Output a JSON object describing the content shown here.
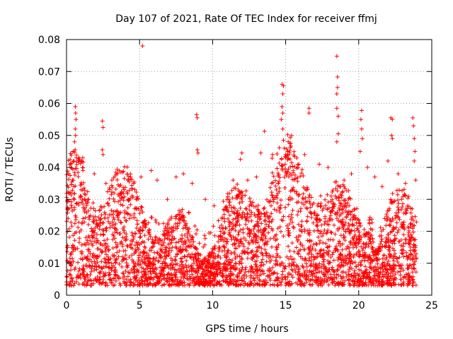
{
  "chart_data": {
    "type": "scatter",
    "title": "Day 107 of 2021, Rate Of TEC Index for receiver ffmj",
    "xlabel": "GPS time / hours",
    "ylabel": "ROTI / TECUs",
    "xlim": [
      0,
      25
    ],
    "ylim": [
      0,
      0.08
    ],
    "xticks": [
      "0",
      "5",
      "10",
      "15",
      "20",
      "25"
    ],
    "yticks": [
      "0",
      "0.01",
      "0.02",
      "0.03",
      "0.04",
      "0.05",
      "0.06",
      "0.07",
      "0.08"
    ],
    "grid": true,
    "marker": "+",
    "color": "#ff0000",
    "series": [
      {
        "name": "ROTI",
        "points": [
          [
            0.05,
            0.015
          ],
          [
            0.15,
            0.038
          ],
          [
            0.3,
            0.04
          ],
          [
            0.45,
            0.045
          ],
          [
            0.5,
            0.042
          ],
          [
            0.6,
            0.059
          ],
          [
            0.62,
            0.057
          ],
          [
            0.65,
            0.055
          ],
          [
            0.6,
            0.052
          ],
          [
            0.62,
            0.05
          ],
          [
            0.55,
            0.048
          ],
          [
            1.0,
            0.033
          ],
          [
            1.5,
            0.03
          ],
          [
            1.9,
            0.038
          ],
          [
            2.45,
            0.0545
          ],
          [
            2.5,
            0.0525
          ],
          [
            2.45,
            0.0455
          ],
          [
            2.5,
            0.044
          ],
          [
            2.7,
            0.035
          ],
          [
            3.1,
            0.036
          ],
          [
            3.6,
            0.031
          ],
          [
            4.2,
            0.036
          ],
          [
            4.6,
            0.035
          ],
          [
            5.2,
            0.078
          ],
          [
            5.1,
            0.037
          ],
          [
            5.8,
            0.039
          ],
          [
            6.2,
            0.036
          ],
          [
            6.9,
            0.03
          ],
          [
            7.5,
            0.037
          ],
          [
            8.0,
            0.038
          ],
          [
            8.6,
            0.035
          ],
          [
            8.9,
            0.0565
          ],
          [
            8.95,
            0.0555
          ],
          [
            8.95,
            0.0455
          ],
          [
            9.0,
            0.0445
          ],
          [
            9.5,
            0.03
          ],
          [
            10.1,
            0.028
          ],
          [
            10.8,
            0.024
          ],
          [
            11.4,
            0.036
          ],
          [
            11.9,
            0.0425
          ],
          [
            12.0,
            0.0445
          ],
          [
            12.4,
            0.036
          ],
          [
            13.0,
            0.037
          ],
          [
            13.3,
            0.0445
          ],
          [
            13.55,
            0.0513
          ],
          [
            14.1,
            0.044
          ],
          [
            14.75,
            0.066
          ],
          [
            14.8,
            0.063
          ],
          [
            14.85,
            0.0655
          ],
          [
            14.75,
            0.059
          ],
          [
            14.8,
            0.057
          ],
          [
            14.7,
            0.055
          ],
          [
            14.8,
            0.052
          ],
          [
            14.85,
            0.0485
          ],
          [
            14.9,
            0.046
          ],
          [
            15.0,
            0.044
          ],
          [
            15.3,
            0.038
          ],
          [
            15.9,
            0.041
          ],
          [
            16.3,
            0.044
          ],
          [
            16.6,
            0.0585
          ],
          [
            16.6,
            0.057
          ],
          [
            17.3,
            0.041
          ],
          [
            17.9,
            0.04
          ],
          [
            18.5,
            0.0748
          ],
          [
            18.55,
            0.0683
          ],
          [
            18.55,
            0.065
          ],
          [
            18.5,
            0.063
          ],
          [
            18.5,
            0.0585
          ],
          [
            18.6,
            0.056
          ],
          [
            18.6,
            0.0505
          ],
          [
            18.5,
            0.048
          ],
          [
            19.0,
            0.036
          ],
          [
            19.5,
            0.038
          ],
          [
            20.2,
            0.0578
          ],
          [
            20.15,
            0.055
          ],
          [
            20.2,
            0.052
          ],
          [
            20.25,
            0.049
          ],
          [
            20.1,
            0.045
          ],
          [
            20.6,
            0.04
          ],
          [
            21.1,
            0.037
          ],
          [
            21.6,
            0.034
          ],
          [
            22.0,
            0.042
          ],
          [
            22.2,
            0.0555
          ],
          [
            22.3,
            0.055
          ],
          [
            22.25,
            0.05
          ],
          [
            22.3,
            0.049
          ],
          [
            22.7,
            0.038
          ],
          [
            23.2,
            0.035
          ],
          [
            23.7,
            0.0555
          ],
          [
            23.75,
            0.053
          ],
          [
            23.8,
            0.049
          ],
          [
            23.85,
            0.045
          ],
          [
            23.8,
            0.042
          ],
          [
            23.9,
            0.036
          ]
        ]
      }
    ]
  }
}
